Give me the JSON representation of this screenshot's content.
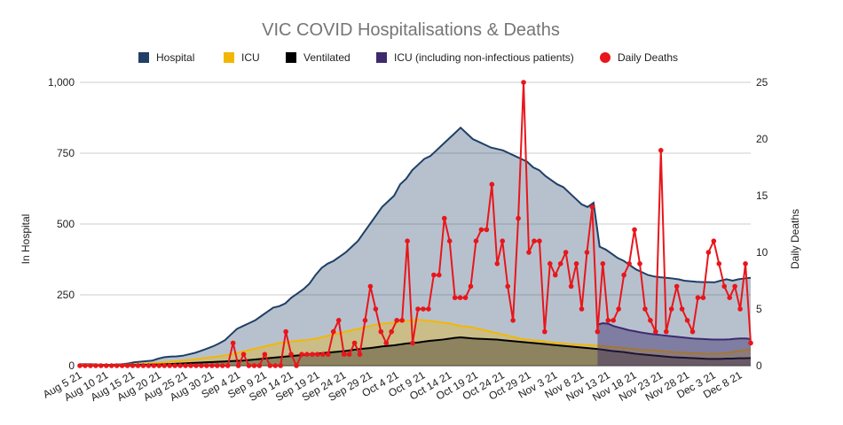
{
  "chart_data": {
    "type": "area",
    "title": "VIC COVID Hospitalisations & Deaths",
    "ylabel": "In Hospital",
    "y2label": "Daily Deaths",
    "ylim": [
      0,
      1000
    ],
    "y2lim": [
      0,
      25
    ],
    "yticks": [
      "0",
      "250",
      "500",
      "750",
      "1,000"
    ],
    "y2ticks": [
      "0",
      "5",
      "10",
      "15",
      "20",
      "25"
    ],
    "x_range": [
      "2021-08-05",
      "2021-12-10"
    ],
    "x_ticks": [
      "Aug 5 21",
      "Aug 10 21",
      "Aug 15 21",
      "Aug 20 21",
      "Aug 25 21",
      "Aug 30 21",
      "Sep 4 21",
      "Sep 9 21",
      "Sep 14 21",
      "Sep 19 21",
      "Sep 24 21",
      "Sep 29 21",
      "Oct 4 21",
      "Oct 9 21",
      "Oct 14 21",
      "Oct 19 21",
      "Oct 24 21",
      "Oct 29 21",
      "Nov 3 21",
      "Nov 8 21",
      "Nov 13 21",
      "Nov 18 21",
      "Nov 23 21",
      "Nov 28 21",
      "Dec 3 21",
      "Dec 8 21"
    ],
    "grid": true,
    "legend_position": "top",
    "series": [
      {
        "name": "Hospital",
        "type": "area",
        "axis": "left",
        "color": "#1f3f66",
        "values": [
          5,
          5,
          5,
          4,
          3,
          3,
          4,
          5,
          8,
          12,
          14,
          16,
          18,
          25,
          30,
          32,
          33,
          35,
          40,
          45,
          52,
          60,
          68,
          78,
          90,
          110,
          130,
          140,
          150,
          160,
          175,
          190,
          205,
          210,
          220,
          240,
          255,
          270,
          290,
          320,
          345,
          360,
          370,
          385,
          400,
          420,
          440,
          470,
          500,
          530,
          560,
          580,
          600,
          640,
          660,
          690,
          710,
          730,
          740,
          760,
          780,
          800,
          820,
          840,
          820,
          800,
          790,
          780,
          770,
          765,
          760,
          750,
          740,
          730,
          720,
          700,
          690,
          670,
          655,
          640,
          630,
          610,
          590,
          570,
          560,
          575,
          420,
          410,
          395,
          380,
          370,
          355,
          340,
          330,
          320,
          315,
          312,
          310,
          308,
          305,
          300,
          298,
          296,
          295,
          295,
          294,
          300,
          305,
          300,
          305,
          308,
          310
        ]
      },
      {
        "name": "ICU",
        "type": "area",
        "axis": "left",
        "color": "#f2b705",
        "values": [
          3,
          3,
          3,
          3,
          2,
          2,
          2,
          3,
          4,
          5,
          6,
          7,
          8,
          10,
          12,
          14,
          16,
          18,
          20,
          22,
          25,
          28,
          30,
          33,
          36,
          40,
          45,
          50,
          55,
          60,
          65,
          70,
          75,
          80,
          82,
          85,
          88,
          90,
          92,
          95,
          100,
          105,
          110,
          115,
          120,
          125,
          130,
          135,
          140,
          145,
          148,
          150,
          152,
          155,
          158,
          160,
          162,
          160,
          158,
          155,
          152,
          150,
          145,
          140,
          138,
          135,
          130,
          125,
          120,
          115,
          110,
          105,
          100,
          95,
          92,
          90,
          88,
          85,
          82,
          80,
          78,
          76,
          75,
          74,
          73,
          72,
          70,
          68,
          66,
          64,
          62,
          60,
          58,
          56,
          55,
          54,
          52,
          50,
          48,
          47,
          46,
          45,
          44,
          43,
          42,
          42,
          43,
          45,
          48,
          52,
          55,
          58
        ]
      },
      {
        "name": "Ventilated",
        "type": "area",
        "axis": "left",
        "color": "#000000",
        "values": [
          1,
          1,
          1,
          1,
          1,
          1,
          1,
          1,
          2,
          2,
          3,
          3,
          4,
          4,
          5,
          6,
          7,
          8,
          9,
          10,
          11,
          12,
          13,
          14,
          15,
          16,
          17,
          18,
          20,
          22,
          24,
          26,
          28,
          30,
          32,
          34,
          36,
          38,
          40,
          42,
          44,
          46,
          48,
          50,
          52,
          55,
          58,
          60,
          62,
          65,
          68,
          70,
          72,
          75,
          78,
          80,
          82,
          85,
          88,
          90,
          92,
          95,
          98,
          100,
          98,
          96,
          95,
          94,
          93,
          92,
          90,
          88,
          86,
          84,
          82,
          80,
          78,
          76,
          74,
          72,
          70,
          68,
          66,
          64,
          62,
          60,
          58,
          55,
          52,
          50,
          48,
          45,
          42,
          40,
          38,
          36,
          34,
          32,
          30,
          29,
          28,
          27,
          26,
          25,
          24,
          24,
          24,
          25,
          25,
          26,
          26,
          27
        ]
      },
      {
        "name": "ICU (including non-infectious patients)",
        "type": "area",
        "axis": "left",
        "color": "#3d2a6e",
        "start": "2021-11-11",
        "values": [
          145,
          150,
          148,
          140,
          135,
          130,
          125,
          122,
          118,
          115,
          112,
          110,
          108,
          106,
          104,
          102,
          100,
          98,
          96,
          95,
          94,
          93,
          92,
          92,
          92,
          93,
          95,
          96,
          96,
          94
        ]
      },
      {
        "name": "Daily Deaths",
        "type": "line",
        "axis": "right",
        "color": "#e8161b",
        "values": [
          0,
          0,
          0,
          0,
          0,
          0,
          0,
          0,
          0,
          0,
          0,
          0,
          0,
          0,
          0,
          0,
          0,
          0,
          0,
          0,
          0,
          0,
          0,
          0,
          0,
          0,
          0,
          0,
          0,
          2,
          0,
          1,
          0,
          0,
          0,
          1,
          0,
          0,
          0,
          3,
          1,
          0,
          1,
          1,
          1,
          1,
          1,
          1,
          3,
          4,
          1,
          1,
          2,
          1,
          4,
          7,
          5,
          3,
          2,
          3,
          4,
          4,
          11,
          2,
          5,
          5,
          5,
          8,
          8,
          13,
          11,
          6,
          6,
          6,
          7,
          11,
          12,
          12,
          16,
          9,
          11,
          7,
          4,
          13,
          25,
          10,
          11,
          11,
          3,
          9,
          8,
          9,
          10,
          7,
          9,
          5,
          10,
          14,
          3,
          9,
          4,
          4,
          5,
          8,
          9,
          12,
          9,
          5,
          4,
          3,
          19,
          3,
          5,
          7,
          5,
          4,
          3,
          6,
          6,
          10,
          11,
          9,
          7,
          6,
          7,
          5,
          9,
          2
        ]
      }
    ]
  }
}
